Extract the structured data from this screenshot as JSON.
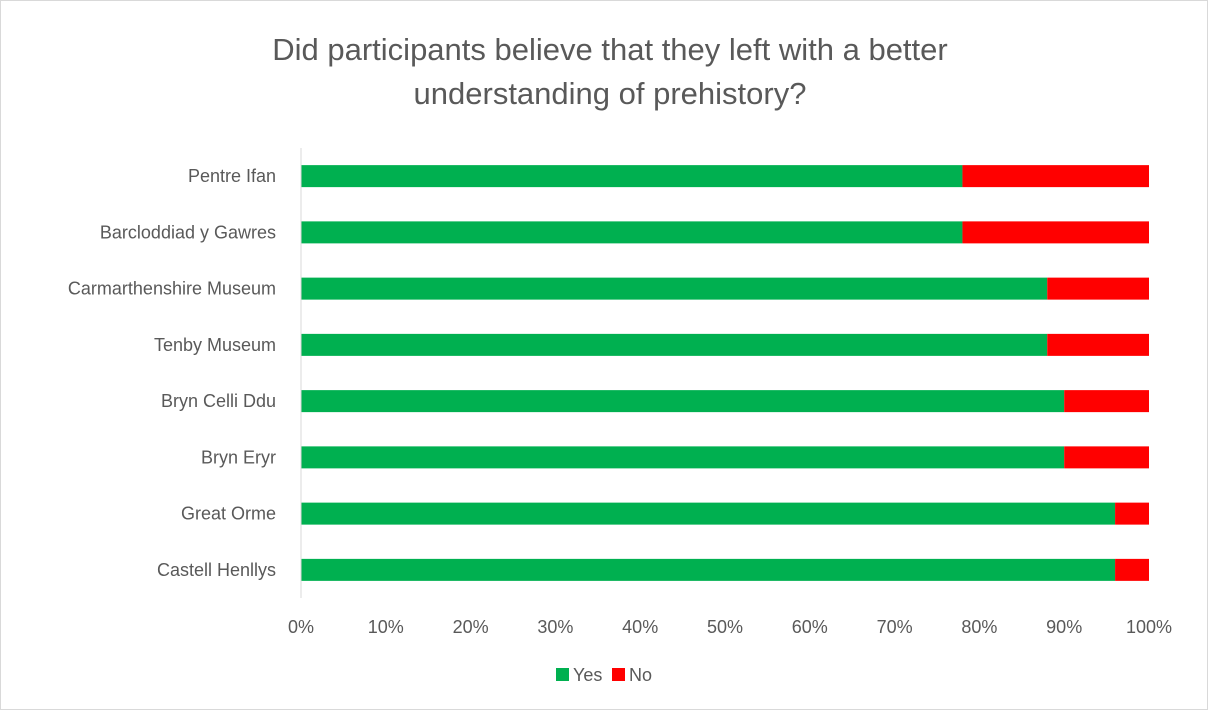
{
  "chart_data": {
    "type": "bar",
    "orientation": "horizontal",
    "stacked": true,
    "normalized": "percent",
    "title": "Did participants believe that they left with a better understanding of prehistory?",
    "categories": [
      "Pentre Ifan",
      "Barcloddiad y Gawres",
      "Carmarthenshire Museum",
      "Tenby Museum",
      "Bryn Celli Ddu",
      "Bryn Eryr",
      "Great Orme",
      "Castell Henllys"
    ],
    "series": [
      {
        "name": "Yes",
        "color": "#00b050",
        "values": [
          78,
          78,
          88,
          88,
          90,
          90,
          96,
          96
        ]
      },
      {
        "name": "No",
        "color": "#ff0000",
        "values": [
          22,
          22,
          12,
          12,
          10,
          10,
          4,
          4
        ]
      }
    ],
    "xlim": [
      0,
      100
    ],
    "x_ticks": [
      "0%",
      "10%",
      "20%",
      "30%",
      "40%",
      "50%",
      "60%",
      "70%",
      "80%",
      "90%",
      "100%"
    ],
    "grid": false,
    "legend_position": "bottom"
  }
}
